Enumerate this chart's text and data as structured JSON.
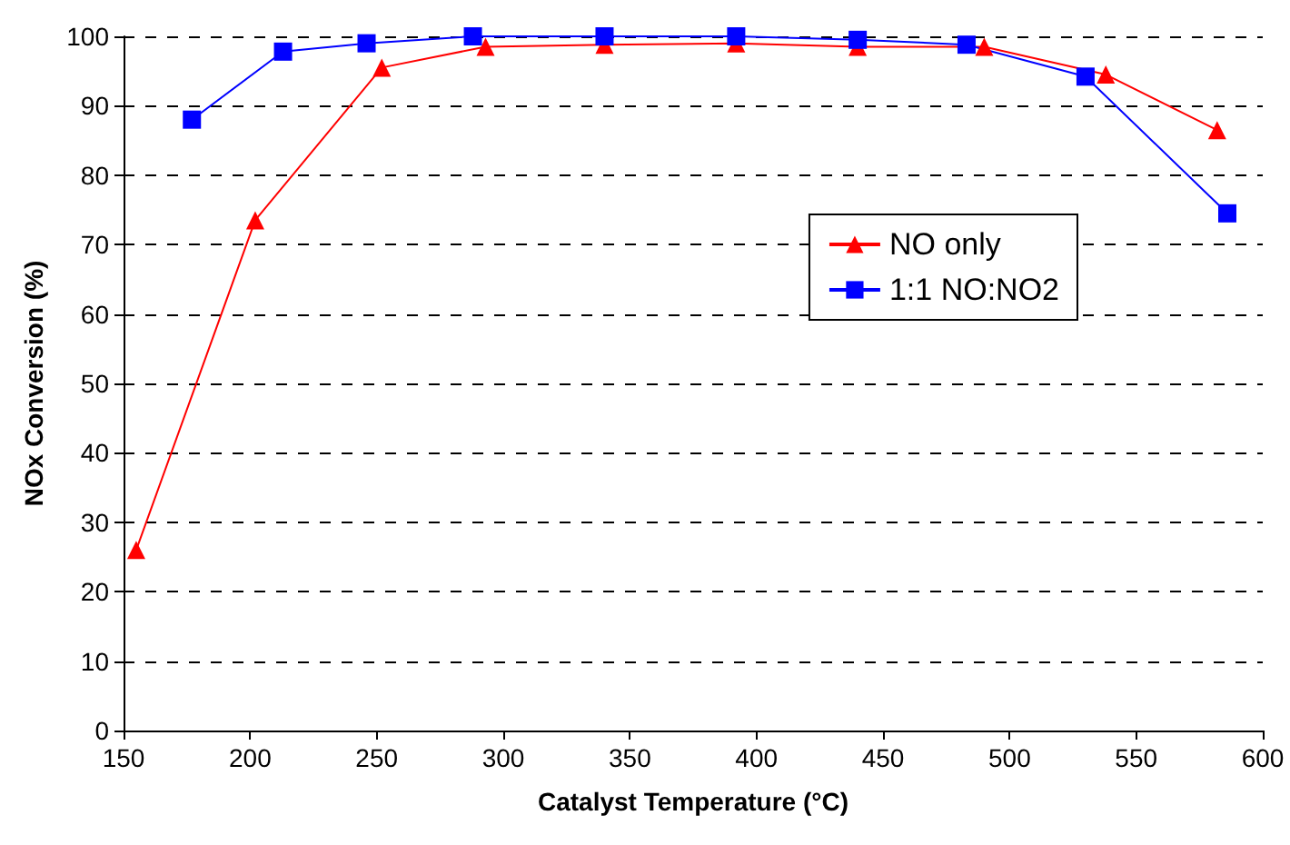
{
  "chart_data": {
    "type": "line",
    "xlabel": "Catalyst Temperature (°C)",
    "ylabel": "NOx Conversion (%)",
    "xlim": [
      150,
      600
    ],
    "xticks": [
      150,
      200,
      250,
      300,
      350,
      400,
      450,
      500,
      550,
      600
    ],
    "ylim": [
      0,
      100
    ],
    "yticks": [
      0,
      10,
      20,
      30,
      40,
      50,
      60,
      70,
      80,
      90,
      100
    ],
    "grid": "y",
    "legend": "right",
    "series": [
      {
        "name": "NO only",
        "color": "#ff0000",
        "marker": "triangle",
        "x": [
          155,
          202,
          252,
          293,
          340,
          392,
          440,
          490,
          538,
          582
        ],
        "values": [
          26,
          73.5,
          95.5,
          98.5,
          98.8,
          99,
          98.5,
          98.5,
          94.5,
          86.5
        ]
      },
      {
        "name": "1:1 NO:NO2",
        "color": "#0000ff",
        "marker": "square",
        "x": [
          177,
          213,
          246,
          288,
          340,
          392,
          440,
          483,
          530,
          586
        ],
        "values": [
          88,
          97.8,
          99,
          100,
          100,
          100,
          99.5,
          98.8,
          94.2,
          74.5
        ]
      }
    ]
  }
}
